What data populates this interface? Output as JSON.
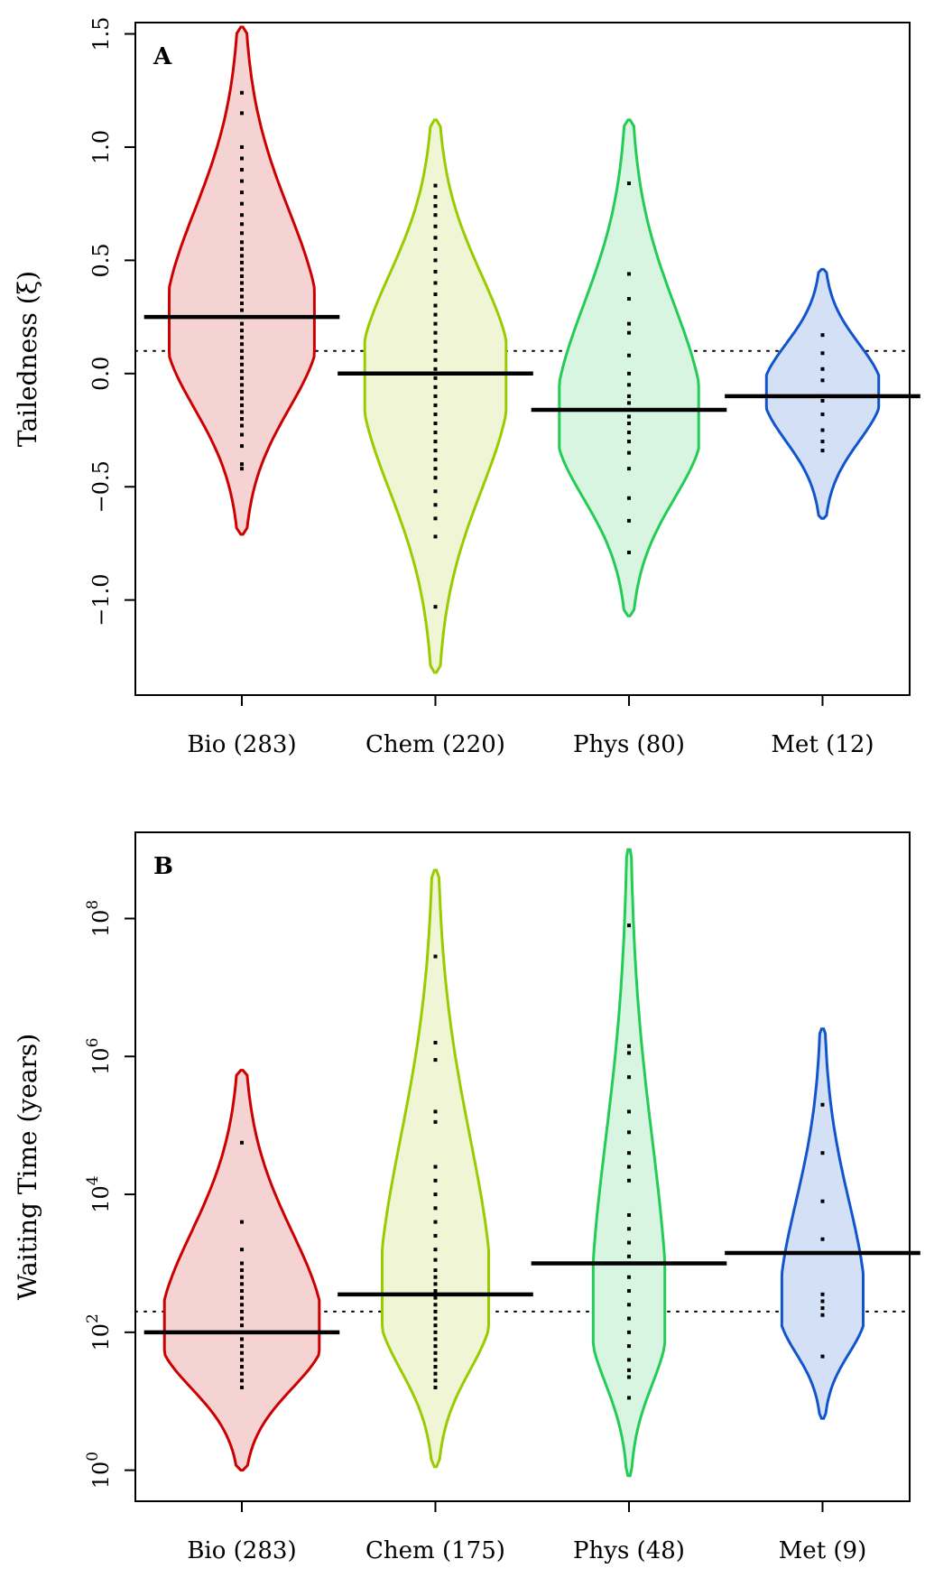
{
  "chart_data": [
    {
      "type": "violin",
      "panel_label": "A",
      "ylabel": "Tailedness (ξ)",
      "ylim": [
        -1.42,
        1.55
      ],
      "yscale": "linear",
      "yticks": [
        {
          "value": 1.5,
          "label": "1.5"
        },
        {
          "value": 1.0,
          "label": "1.0"
        },
        {
          "value": 0.5,
          "label": "0.5"
        },
        {
          "value": 0.0,
          "label": "0.0"
        },
        {
          "value": -0.5,
          "label": "−0.5"
        },
        {
          "value": -1.0,
          "label": "−1.0"
        }
      ],
      "reference_line": 0.1,
      "series": [
        {
          "label": "Bio (283)",
          "color": "#cc0000",
          "fill": "#f6d3d3",
          "median": 0.25,
          "min": -0.71,
          "max": 1.53,
          "mode": 0.2,
          "half_width_max": 0.75,
          "points": [
            1.24,
            1.15,
            1.0,
            0.95,
            0.9,
            0.85,
            0.8,
            0.75,
            0.7,
            0.66,
            0.62,
            0.58,
            0.55,
            0.52,
            0.49,
            0.46,
            0.43,
            0.4,
            0.37,
            0.34,
            0.31,
            0.28,
            0.25,
            0.22,
            0.19,
            0.16,
            0.13,
            0.1,
            0.07,
            0.04,
            0.01,
            -0.02,
            -0.05,
            -0.08,
            -0.11,
            -0.14,
            -0.17,
            -0.2,
            -0.23,
            -0.27,
            -0.32,
            -0.4,
            -0.42
          ]
        },
        {
          "label": "Chem (220)",
          "color": "#99cc00",
          "fill": "#f0f5d6",
          "median": 0.0,
          "min": -1.32,
          "max": 1.12,
          "mode": 0.0,
          "half_width_max": 0.73,
          "points": [
            0.83,
            0.78,
            0.74,
            0.7,
            0.65,
            0.6,
            0.55,
            0.5,
            0.45,
            0.4,
            0.35,
            0.3,
            0.26,
            0.22,
            0.18,
            0.14,
            0.1,
            0.06,
            0.02,
            -0.02,
            -0.06,
            -0.1,
            -0.14,
            -0.18,
            -0.22,
            -0.26,
            -0.3,
            -0.34,
            -0.38,
            -0.42,
            -0.46,
            -0.52,
            -0.58,
            -0.64,
            -0.72,
            -1.03
          ]
        },
        {
          "label": "Phys (80)",
          "color": "#22cc55",
          "fill": "#d8f5e2",
          "median": -0.16,
          "min": -1.07,
          "max": 1.12,
          "mode": -0.22,
          "half_width_max": 0.72,
          "points": [
            0.84,
            0.44,
            0.33,
            0.22,
            0.18,
            0.08,
            0.0,
            -0.05,
            -0.1,
            -0.13,
            -0.16,
            -0.19,
            -0.22,
            -0.26,
            -0.3,
            -0.35,
            -0.42,
            -0.55,
            -0.65,
            -0.79
          ]
        },
        {
          "label": "Met (12)",
          "color": "#1155cc",
          "fill": "#d3e0f6",
          "median": -0.1,
          "min": -0.64,
          "max": 0.46,
          "mode": -0.08,
          "half_width_max": 0.58,
          "points": [
            0.17,
            0.09,
            0.02,
            -0.03,
            -0.1,
            -0.12,
            -0.18,
            -0.25,
            -0.3,
            -0.34
          ]
        }
      ]
    },
    {
      "type": "violin",
      "panel_label": "B",
      "ylabel": "Waiting Time (years)",
      "ylim": [
        -0.45,
        9.25
      ],
      "yscale": "log10",
      "yticks": [
        {
          "value": 0,
          "base": "10",
          "exp": "0"
        },
        {
          "value": 2,
          "base": "10",
          "exp": "2"
        },
        {
          "value": 4,
          "base": "10",
          "exp": "4"
        },
        {
          "value": 6,
          "base": "10",
          "exp": "6"
        },
        {
          "value": 8,
          "base": "10",
          "exp": "8"
        }
      ],
      "reference_line": 2.3,
      "series": [
        {
          "label": "Bio (283)",
          "color": "#cc0000",
          "fill": "#f6d3d3",
          "median": 2.0,
          "min": 0.0,
          "max": 5.8,
          "mode": 1.95,
          "half_width_max": 0.8,
          "points": [
            4.75,
            3.6,
            3.2,
            3.0,
            2.9,
            2.8,
            2.7,
            2.6,
            2.5,
            2.4,
            2.3,
            2.2,
            2.1,
            2.0,
            1.9,
            1.8,
            1.7,
            1.6,
            1.5,
            1.4,
            1.3,
            1.2
          ]
        },
        {
          "label": "Chem (175)",
          "color": "#99cc00",
          "fill": "#f0f5d6",
          "median": 2.55,
          "min": 0.05,
          "max": 8.7,
          "mode": 2.35,
          "half_width_max": 0.55,
          "points": [
            7.45,
            6.2,
            5.95,
            5.2,
            5.05,
            4.4,
            4.2,
            4.0,
            3.8,
            3.6,
            3.4,
            3.2,
            3.05,
            2.9,
            2.8,
            2.7,
            2.6,
            2.5,
            2.4,
            2.3,
            2.2,
            2.1,
            2.0,
            1.9,
            1.8,
            1.7,
            1.6,
            1.5,
            1.4,
            1.3,
            1.2
          ]
        },
        {
          "label": "Phys (48)",
          "color": "#22cc55",
          "fill": "#d8f5e2",
          "median": 3.0,
          "min": -0.08,
          "max": 9.0,
          "mode": 2.1,
          "half_width_max": 0.37,
          "points": [
            7.9,
            6.15,
            6.05,
            5.7,
            5.2,
            4.9,
            4.6,
            4.4,
            4.2,
            3.7,
            3.5,
            3.3,
            3.1,
            3.0,
            2.8,
            2.6,
            2.4,
            2.2,
            2.0,
            1.8,
            1.6,
            1.45,
            1.35,
            1.05
          ]
        },
        {
          "label": "Met (9)",
          "color": "#1155cc",
          "fill": "#d3e0f6",
          "median": 3.15,
          "min": 0.75,
          "max": 6.4,
          "mode": 2.3,
          "half_width_max": 0.42,
          "points": [
            5.3,
            4.6,
            3.9,
            3.35,
            2.55,
            2.45,
            2.35,
            2.25,
            1.65
          ]
        }
      ]
    }
  ]
}
